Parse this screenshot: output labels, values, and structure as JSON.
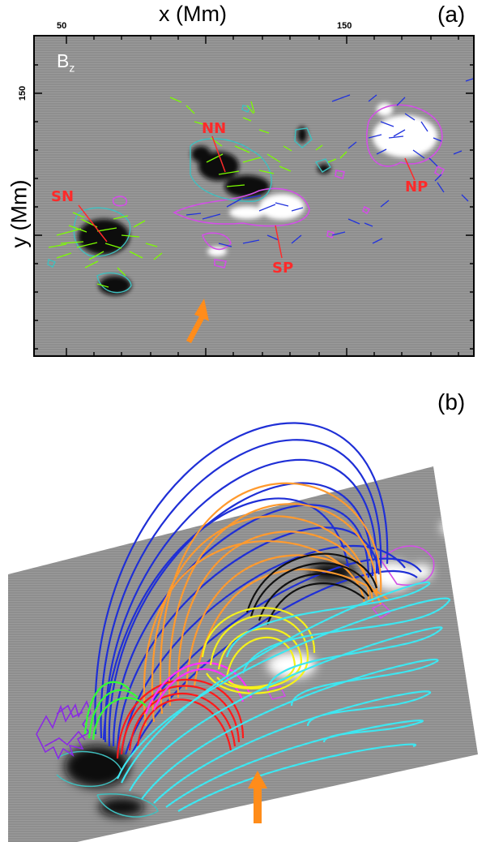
{
  "panel_a": {
    "label": "(a)",
    "x_axis_title": "x (Mm)",
    "y_axis_title": "y (Mm)",
    "x_ticks": [
      "50",
      "150"
    ],
    "y_ticks": [
      "150"
    ],
    "field_label_main": "B",
    "field_label_sub": "z",
    "regions": [
      "SN",
      "NN",
      "SP",
      "NP"
    ]
  },
  "panel_b": {
    "label": "(b)"
  },
  "colors": {
    "label_red": "#ff2a2a",
    "arrow_orange": "#ff8c1a",
    "contour_magenta": "#d24fe6",
    "contour_cyan": "#3fbfbf",
    "vector_green": "#7cfc00",
    "vector_blue": "#2233dd",
    "loops_blue": "#1f2fd6",
    "loops_orange": "#ff9a2e",
    "loops_black": "#111111",
    "loops_yellow": "#f5f11a",
    "loops_cyan": "#3ee6f0",
    "loops_red": "#ff1a1a",
    "loops_magenta": "#ff30ff",
    "loops_green": "#33ff33",
    "loops_purple": "#8a2be2"
  }
}
